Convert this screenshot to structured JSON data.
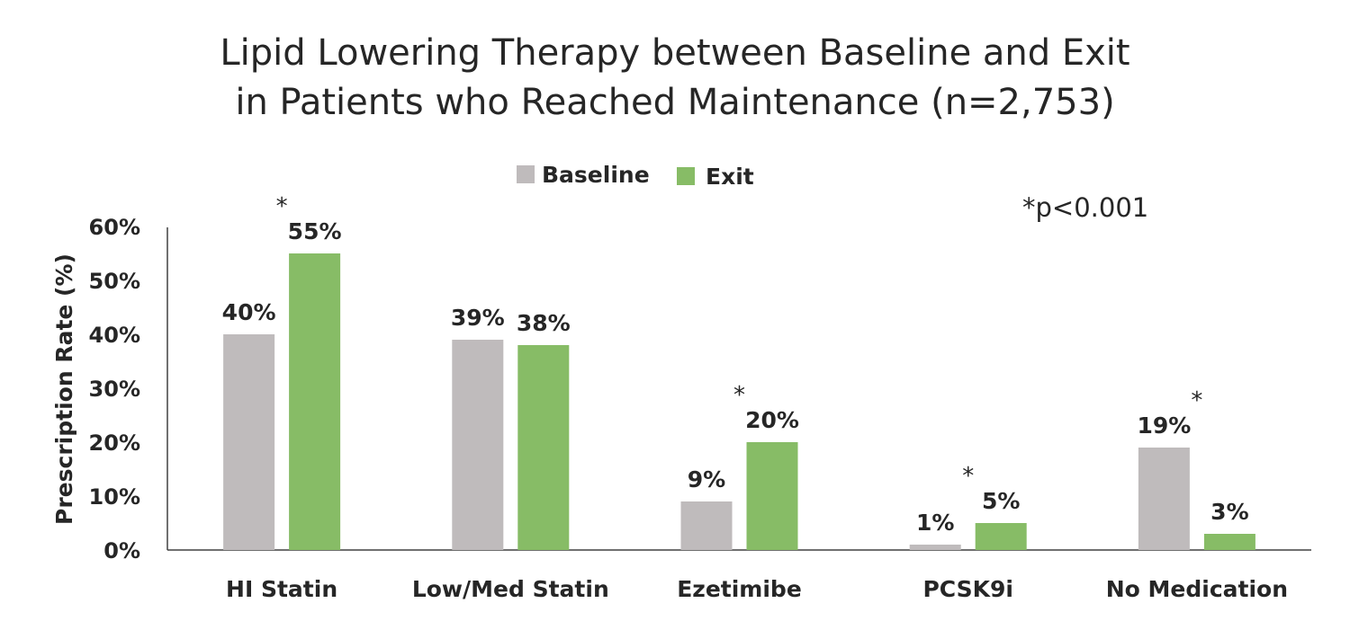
{
  "chart_data": {
    "type": "bar",
    "title_lines": [
      "Lipid Lowering Therapy between Baseline and Exit",
      "in Patients who Reached Maintenance (n=2,753)"
    ],
    "ylabel": "Prescription Rate (%)",
    "xlabel": "",
    "ylim": [
      0,
      60
    ],
    "yticks": [
      "0%",
      "10%",
      "20%",
      "30%",
      "40%",
      "50%",
      "60%"
    ],
    "categories": [
      "HI Statin",
      "Low/Med Statin",
      "Ezetimibe",
      "PCSK9i",
      "No Medication"
    ],
    "series": [
      {
        "name": "Baseline",
        "color": "#bfbbbc",
        "values": [
          40,
          39,
          9,
          1,
          19
        ],
        "labels": [
          "40%",
          "39%",
          "9%",
          "1%",
          "19%"
        ]
      },
      {
        "name": "Exit",
        "color": "#87bc66",
        "values": [
          55,
          38,
          20,
          5,
          3
        ],
        "labels": [
          "55%",
          "38%",
          "20%",
          "5%",
          "3%"
        ]
      }
    ],
    "significance_marker": "*",
    "significant_categories": [
      true,
      false,
      true,
      true,
      true
    ],
    "note": "*p<0.001",
    "legend_position": "top-center",
    "grid": false
  }
}
